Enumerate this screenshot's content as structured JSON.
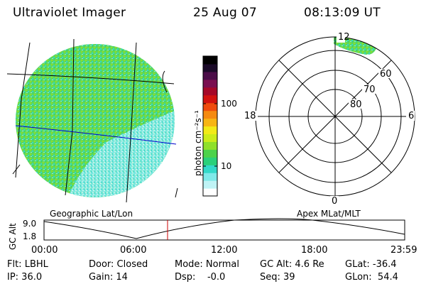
{
  "header": {
    "instrument": "Ultraviolet Imager",
    "date": "25 Aug 07",
    "time": "08:13:09 UT"
  },
  "colorbar": {
    "label": "photon cm⁻²s⁻¹",
    "ticks": [
      "100",
      "10"
    ],
    "colors": [
      "#ffffff",
      "#bff3f5",
      "#7fe9e9",
      "#33d9c9",
      "#2ad07a",
      "#4cd24a",
      "#8fe02a",
      "#ccec1a",
      "#f2ea18",
      "#f7b514",
      "#f58a10",
      "#ef4b0d",
      "#d2120f",
      "#a50828",
      "#7a0f50",
      "#4b0d48",
      "#1a0a28",
      "#000000"
    ]
  },
  "polar": {
    "top_label": "12",
    "left_label": "18",
    "right_label": "6",
    "bottom_label": "0",
    "ring_labels": [
      "60",
      "70",
      "80"
    ]
  },
  "timeline": {
    "left_title": "Geographic Lat/Lon",
    "right_title": "Apex MLat/MLT",
    "axis_label": "GC Alt",
    "y_max": "9.0",
    "y_min": "1.8",
    "x_ticks": [
      "00:00",
      "06:00",
      "12:00",
      "18:00",
      "23:59"
    ],
    "marker_time_hours": 8.22
  },
  "info": {
    "filter": "Flt: LBHL",
    "door": "Door: Closed",
    "mode": "Mode: Normal",
    "gc_alt": "GC Alt: 4.6 Re",
    "glat": "GLat: -36.4",
    "ip": "IP: 36.0",
    "gain": "Gain: 14",
    "dsp": "Dsp:    -0.0",
    "seq": "Seq: 39",
    "glon": "GLon:  54.4"
  },
  "colors": {
    "earth_green": "#4cd24a",
    "earth_cyan": "#7fe9e9",
    "grid_blue": "#0000cc",
    "marker_red": "#cc0000"
  }
}
